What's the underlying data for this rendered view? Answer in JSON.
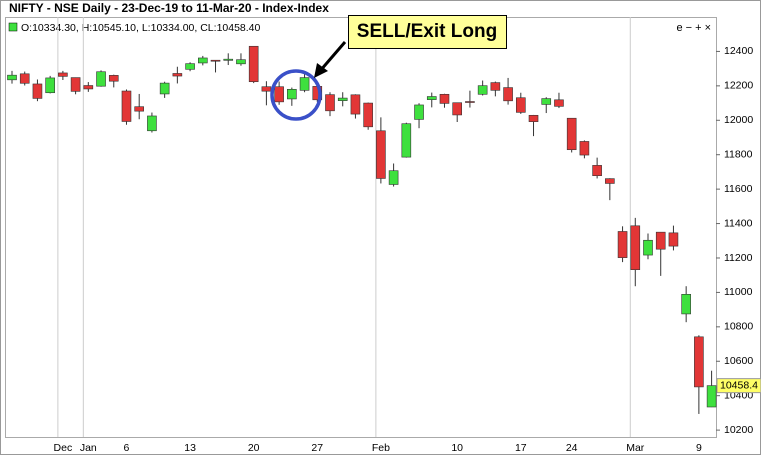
{
  "chart_data": {
    "type": "candlestick",
    "title": "NIFTY - NSE Daily - 23-Dec-19 to 11-Mar-20 - Index-Index",
    "ohlc_text": "O:10334.30, H:10545.10, L:10334.00, CL:10458.40",
    "toolbar": "e − + ×",
    "annotation": "SELL/Exit Long",
    "categories": [
      null,
      null,
      null,
      null,
      "Dec",
      null,
      "Jan",
      null,
      null,
      "6",
      null,
      null,
      null,
      null,
      "13",
      null,
      null,
      null,
      null,
      "20",
      null,
      null,
      null,
      null,
      "27",
      null,
      null,
      null,
      null,
      "Feb",
      null,
      null,
      null,
      null,
      null,
      "10",
      null,
      null,
      null,
      null,
      "17",
      null,
      null,
      null,
      "24",
      null,
      null,
      null,
      null,
      "Mar",
      null,
      null,
      null,
      null,
      "9",
      null
    ],
    "open": [
      12235,
      12270,
      12211,
      12160,
      12275,
      12248,
      12202,
      12198,
      12261,
      12170,
      12079,
      11939,
      12153,
      12272,
      12296,
      12333,
      12349,
      12348,
      12328,
      12430,
      12195,
      12195,
      12124,
      12174,
      12197,
      12149,
      12114,
      12148,
      12100,
      11939,
      11627,
      11786,
      12005,
      12120,
      12151,
      12102,
      12109,
      12151,
      12219,
      12190,
      12131,
      12029,
      12092,
      12119,
      12012,
      11877,
      11738,
      11661,
      11354,
      11387,
      11217,
      11350,
      11346,
      10875,
      10742,
      10334.3
    ],
    "high": [
      12287,
      12283,
      12237,
      12258,
      12287,
      12248,
      12222,
      12290,
      12265,
      12179,
      12153,
      12045,
      12224,
      12311,
      12337,
      12374,
      12350,
      12389,
      12389,
      12430,
      12227,
      12225,
      12190,
      12273,
      12216,
      12163,
      12163,
      12151,
      12103,
      12017,
      11749,
      11986,
      12099,
      12161,
      12154,
      12103,
      12172,
      12231,
      12225,
      12246,
      12160,
      12031,
      12134,
      12160,
      12012,
      11883,
      11783,
      11663,
      11384,
      11433,
      11342,
      11350,
      11388,
      11036,
      10751,
      10545.1
    ],
    "low": [
      12213,
      12202,
      12111,
      12156,
      12234,
      12151,
      12165,
      12195,
      12191,
      11974,
      12006,
      11929,
      12130,
      12214,
      12285,
      12319,
      12278,
      12321,
      12317,
      12216,
      12087,
      12090,
      12084,
      12163,
      12107,
      12024,
      12081,
      12010,
      11945,
      11633,
      11615,
      11783,
      11954,
      12075,
      12073,
      11990,
      12074,
      12144,
      12139,
      12091,
      12037,
      11908,
      12042,
      12071,
      11813,
      11779,
      11662,
      11536,
      11176,
      11036,
      11193,
      11096,
      11244,
      10827,
      10294,
      10334
    ],
    "close": [
      12262,
      12215,
      12127,
      12246,
      12255,
      12168,
      12182,
      12282,
      12227,
      11993,
      12053,
      12025,
      12216,
      12257,
      12329,
      12362,
      12343,
      12355,
      12352,
      12224,
      12169,
      12107,
      12180,
      12248,
      12119,
      12055,
      12129,
      12036,
      11962,
      11662,
      11707,
      11980,
      12089,
      12138,
      12098,
      12031,
      12108,
      12201,
      12174,
      12113,
      12046,
      11992,
      12126,
      12081,
      11829,
      11798,
      11678,
      11633,
      11202,
      11132,
      11303,
      11251,
      11269,
      10989,
      10451,
      10458.4
    ],
    "up_color": "#3ee03e",
    "down_color": "#e23636",
    "ylim": [
      10160,
      12600
    ],
    "yticks": [
      10200,
      10400,
      10600,
      10800,
      11000,
      11200,
      11400,
      11600,
      11800,
      12000,
      12200,
      12400
    ],
    "grid": true
  }
}
